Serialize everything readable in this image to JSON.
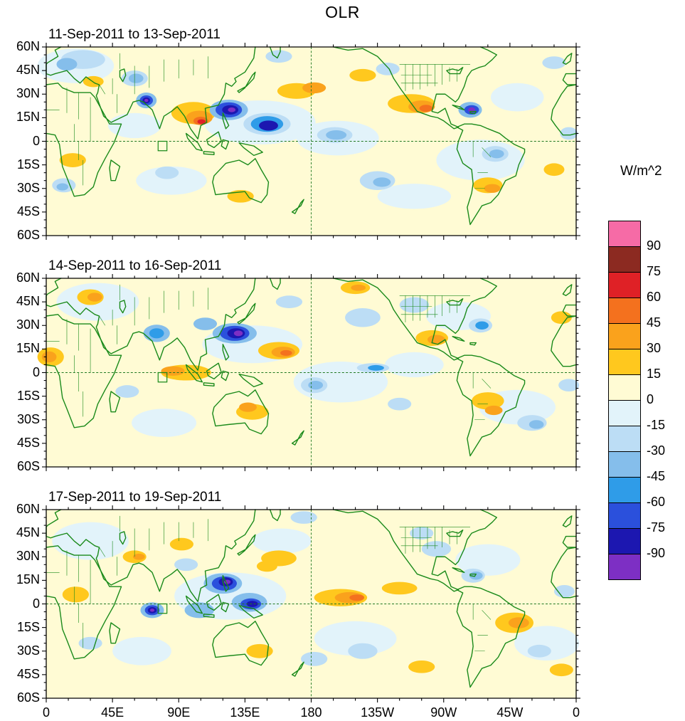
{
  "title": "OLR",
  "units_label": "W/m^2",
  "panels": [
    {
      "title": "11-Sep-2011 to 13-Sep-2011",
      "features": [
        [
          20,
          48,
          26,
          11,
          6
        ],
        [
          145,
          12,
          38,
          14,
          6
        ],
        [
          198,
          2,
          28,
          11,
          6
        ],
        [
          295,
          -12,
          30,
          13,
          6
        ],
        [
          85,
          -25,
          24,
          9,
          6
        ],
        [
          320,
          28,
          18,
          9,
          6
        ],
        [
          250,
          -35,
          25,
          8,
          6
        ],
        [
          60,
          10,
          18,
          8,
          6
        ],
        [
          100,
          18,
          15,
          7,
          8
        ],
        [
          104,
          15,
          9,
          4.5,
          9
        ],
        [
          105,
          13,
          5,
          2.6,
          10
        ],
        [
          105.5,
          12.5,
          2.8,
          1.5,
          11
        ],
        [
          170,
          32,
          13,
          5,
          8
        ],
        [
          182,
          34,
          8,
          3.5,
          9
        ],
        [
          248,
          24,
          16,
          6,
          8
        ],
        [
          255,
          22,
          9,
          4,
          9
        ],
        [
          258,
          21,
          4.5,
          2.2,
          10
        ],
        [
          300,
          -28,
          10,
          5,
          8
        ],
        [
          303,
          -30,
          5.5,
          2.8,
          9
        ],
        [
          18,
          -12,
          9,
          4.5,
          8
        ],
        [
          132,
          -35,
          9,
          4,
          8
        ],
        [
          345,
          -18,
          7,
          4,
          8
        ],
        [
          32,
          38,
          7,
          3.5,
          8
        ],
        [
          215,
          42,
          9,
          4,
          8
        ],
        [
          25,
          52,
          15,
          6,
          5
        ],
        [
          14,
          49,
          7,
          4,
          4
        ],
        [
          60,
          40,
          9,
          5,
          5
        ],
        [
          61,
          40,
          5,
          3,
          4
        ],
        [
          68,
          26,
          7,
          5,
          4
        ],
        [
          68,
          26,
          4.5,
          3.2,
          2
        ],
        [
          68,
          26,
          2.6,
          1.9,
          1
        ],
        [
          68,
          26,
          1.3,
          1,
          0
        ],
        [
          124,
          20,
          13,
          6.5,
          4
        ],
        [
          124,
          20,
          9,
          4.8,
          2
        ],
        [
          125,
          20,
          5.5,
          3,
          1
        ],
        [
          126,
          20,
          2.6,
          1.5,
          0
        ],
        [
          150,
          11,
          16,
          7,
          5
        ],
        [
          150,
          11,
          11,
          5,
          3
        ],
        [
          151,
          10,
          6.5,
          3.2,
          1
        ],
        [
          196,
          4,
          12,
          5,
          5
        ],
        [
          197,
          4,
          7,
          3,
          4
        ],
        [
          225,
          -25,
          12,
          6,
          5
        ],
        [
          228,
          -26,
          6,
          3,
          4
        ],
        [
          288,
          20,
          8,
          5,
          4
        ],
        [
          289,
          20,
          5,
          3,
          2
        ],
        [
          289,
          20,
          2.4,
          1.6,
          0
        ],
        [
          305,
          -8,
          9,
          5,
          5
        ],
        [
          306,
          -8,
          5,
          2.8,
          4
        ],
        [
          12,
          -28,
          8,
          4.5,
          5
        ],
        [
          11,
          -29,
          4,
          2.3,
          4
        ],
        [
          82,
          -20,
          8,
          4,
          5
        ],
        [
          355,
          5,
          6,
          4,
          5
        ],
        [
          158,
          54,
          9,
          4,
          5
        ],
        [
          232,
          46,
          8,
          4,
          5
        ],
        [
          345,
          50,
          8,
          4,
          5
        ]
      ]
    },
    {
      "title": "14-Sep-2011 to 16-Sep-2011",
      "features": [
        [
          35,
          45,
          28,
          12,
          6
        ],
        [
          140,
          18,
          34,
          12,
          6
        ],
        [
          200,
          -6,
          32,
          13,
          6
        ],
        [
          280,
          36,
          22,
          9,
          6
        ],
        [
          320,
          -22,
          26,
          11,
          6
        ],
        [
          80,
          -32,
          22,
          9,
          6
        ],
        [
          250,
          5,
          20,
          8,
          6
        ],
        [
          95,
          0,
          17,
          5,
          8
        ],
        [
          86,
          1,
          8,
          3,
          9
        ],
        [
          158,
          14,
          14,
          5.5,
          8
        ],
        [
          161,
          13,
          8,
          3.5,
          9
        ],
        [
          163,
          12.5,
          4,
          1.8,
          10
        ],
        [
          30,
          48,
          9,
          5,
          8
        ],
        [
          33,
          48,
          5,
          2.8,
          9
        ],
        [
          3,
          10,
          9,
          6,
          8
        ],
        [
          2,
          10,
          5,
          3.5,
          9
        ],
        [
          262,
          22,
          11,
          5,
          8
        ],
        [
          265,
          21,
          6,
          3,
          9
        ],
        [
          300,
          -18,
          11,
          5.5,
          8
        ],
        [
          304,
          -24,
          6,
          3,
          9
        ],
        [
          140,
          -25,
          11,
          5,
          8
        ],
        [
          137,
          -22,
          6,
          3,
          9
        ],
        [
          210,
          54,
          10,
          4,
          8
        ],
        [
          212,
          54,
          5,
          2,
          9
        ],
        [
          350,
          35,
          7,
          4,
          8
        ],
        [
          75,
          25,
          9,
          5.5,
          4
        ],
        [
          75,
          25,
          5,
          3.2,
          3
        ],
        [
          128,
          25,
          15,
          6.5,
          4
        ],
        [
          128,
          25,
          10,
          4.8,
          2
        ],
        [
          129,
          25,
          6,
          3.2,
          1
        ],
        [
          130.5,
          25,
          3,
          1.8,
          0
        ],
        [
          108,
          31,
          8,
          4,
          4
        ],
        [
          182,
          -8,
          9,
          5,
          5
        ],
        [
          183,
          -8,
          5,
          2.8,
          4
        ],
        [
          215,
          35,
          12,
          6,
          5
        ],
        [
          222,
          3,
          11,
          3,
          5
        ],
        [
          224,
          3,
          5.5,
          1.8,
          3
        ],
        [
          250,
          43,
          10,
          5,
          5
        ],
        [
          295,
          30,
          8,
          4.5,
          5
        ],
        [
          296,
          30,
          4.5,
          2.6,
          3
        ],
        [
          330,
          -32,
          10,
          5,
          5
        ],
        [
          333,
          -33,
          5,
          2.8,
          4
        ],
        [
          55,
          -12,
          8,
          4,
          5
        ],
        [
          355,
          -8,
          7,
          4,
          5
        ],
        [
          165,
          45,
          9,
          4,
          5
        ],
        [
          240,
          -20,
          8,
          4,
          5
        ]
      ]
    },
    {
      "title": "17-Sep-2011 to 19-Sep-2011",
      "features": [
        [
          30,
          40,
          26,
          12,
          6
        ],
        [
          125,
          5,
          38,
          15,
          6
        ],
        [
          210,
          -22,
          28,
          11,
          6
        ],
        [
          300,
          28,
          22,
          10,
          6
        ],
        [
          340,
          -25,
          22,
          11,
          6
        ],
        [
          65,
          -30,
          20,
          9,
          6
        ],
        [
          160,
          40,
          20,
          8,
          6
        ],
        [
          200,
          4,
          18,
          5.5,
          8
        ],
        [
          206,
          4,
          10,
          3.5,
          9
        ],
        [
          211,
          4,
          5,
          2,
          10
        ],
        [
          158,
          29,
          12,
          5,
          8
        ],
        [
          150,
          24,
          7,
          3.5,
          8
        ],
        [
          240,
          10,
          12,
          4,
          8
        ],
        [
          318,
          -12,
          13,
          6.5,
          8
        ],
        [
          321,
          -12,
          7,
          3.5,
          9
        ],
        [
          20,
          6,
          9,
          5,
          8
        ],
        [
          60,
          30,
          8,
          4,
          8
        ],
        [
          63,
          30,
          4,
          2,
          9
        ],
        [
          145,
          -30,
          9,
          4.5,
          8
        ],
        [
          255,
          -40,
          9,
          4,
          8
        ],
        [
          92,
          38,
          8,
          4,
          8
        ],
        [
          350,
          -42,
          8,
          4,
          8
        ],
        [
          72,
          -4,
          8,
          5,
          4
        ],
        [
          72,
          -4,
          5,
          3.2,
          2
        ],
        [
          72,
          -4,
          3,
          2,
          1
        ],
        [
          72,
          -4,
          1.5,
          1,
          0
        ],
        [
          120,
          13,
          13,
          6.5,
          4
        ],
        [
          121,
          13,
          8.5,
          4.5,
          2
        ],
        [
          122,
          14,
          4.8,
          2.8,
          1
        ],
        [
          123,
          14,
          2.2,
          1.4,
          0
        ],
        [
          138,
          1,
          12,
          6,
          4
        ],
        [
          139,
          0,
          7,
          3.5,
          2
        ],
        [
          140,
          0,
          3.8,
          2,
          1
        ],
        [
          104,
          -4,
          10,
          5,
          4
        ],
        [
          265,
          35,
          10,
          5,
          5
        ],
        [
          255,
          45,
          8,
          4,
          5
        ],
        [
          290,
          18,
          8,
          4.5,
          5
        ],
        [
          292,
          18,
          4.5,
          2.6,
          4
        ],
        [
          182,
          -35,
          9,
          4.5,
          5
        ],
        [
          215,
          -30,
          10,
          5,
          5
        ],
        [
          335,
          -30,
          8,
          4,
          5
        ],
        [
          95,
          25,
          8,
          4,
          5
        ],
        [
          30,
          -25,
          8,
          4,
          5
        ],
        [
          352,
          8,
          7,
          4,
          5
        ],
        [
          175,
          55,
          9,
          4,
          5
        ]
      ]
    }
  ],
  "axes": {
    "lat_labels": [
      "60N",
      "45N",
      "30N",
      "15N",
      "0",
      "15S",
      "30S",
      "45S",
      "60S"
    ],
    "lat_values": [
      60,
      45,
      30,
      15,
      0,
      -15,
      -30,
      -45,
      -60
    ],
    "lon_labels": [
      "0",
      "45E",
      "90E",
      "135E",
      "180",
      "135W",
      "90W",
      "45W",
      "0"
    ],
    "lon_values": [
      0,
      45,
      90,
      135,
      180,
      225,
      270,
      315,
      360
    ]
  },
  "colorbar": {
    "tick_labels": [
      "90",
      "75",
      "60",
      "45",
      "30",
      "15",
      "0",
      "-15",
      "-30",
      "-45",
      "-60",
      "-75",
      "-90"
    ]
  },
  "colors": {
    "palette_low_to_high": [
      "#7D2FC4",
      "#1C17B0",
      "#2B50DC",
      "#2F9CE8",
      "#85BEEB",
      "#BCDDF5",
      "#E2F3FA",
      "#FFFBD4",
      "#FFC81E",
      "#FAA21C",
      "#F4711E",
      "#DF2126",
      "#8C2A21",
      "#F66BA6"
    ],
    "land_outline": "#1a8a1a",
    "dashed_line": "#207820",
    "frame": "#000000",
    "map_background": "#FFFBD4"
  },
  "marker_box": {
    "lon_min": 76,
    "lon_max": 82,
    "lat_min": -6,
    "lat_max": 0
  },
  "chart_data": {
    "type": "heatmap",
    "subtype": "filled-contour world-map anomaly panels (3 stacked maps sharing one colorbar)",
    "title": "OLR",
    "units": "W/m^2",
    "panels": [
      "11-Sep-2011 to 13-Sep-2011",
      "14-Sep-2011 to 16-Sep-2011",
      "17-Sep-2011 to 19-Sep-2011"
    ],
    "contour_levels": [
      -90,
      -75,
      -60,
      -45,
      -30,
      -15,
      0,
      15,
      30,
      45,
      60,
      75,
      90
    ],
    "palette_low_to_high": [
      "#7D2FC4",
      "#1C17B0",
      "#2B50DC",
      "#2F9CE8",
      "#85BEEB",
      "#BCDDF5",
      "#E2F3FA",
      "#FFFBD4",
      "#FFC81E",
      "#FAA21C",
      "#F4711E",
      "#DF2126",
      "#8C2A21",
      "#F66BA6"
    ],
    "x_axis": {
      "tick_labels": [
        "0",
        "45E",
        "90E",
        "135E",
        "180",
        "135W",
        "90W",
        "45W",
        "0"
      ],
      "range_deg_east": [
        0,
        360
      ],
      "minor_tick_deg": 15
    },
    "y_axis": {
      "tick_labels": [
        "60N",
        "45N",
        "30N",
        "15N",
        "0",
        "15S",
        "30S",
        "45S",
        "60S"
      ],
      "range_deg_north": [
        60,
        -60
      ],
      "minor_tick_deg": 5
    },
    "colorbar_position": "right",
    "grid_lines": {
      "equator_dashed": true,
      "dateline_180_dashed": true
    },
    "approx_anomaly_centers_per_panel": [
      [
        {
          "lon": 68,
          "lat": 26,
          "peak_wm2": -95
        },
        {
          "lon": 105,
          "lat": 13,
          "peak_wm2": 65
        },
        {
          "lon": 125,
          "lat": 20,
          "peak_wm2": -95
        },
        {
          "lon": 150,
          "lat": 11,
          "peak_wm2": -80
        },
        {
          "lon": 170,
          "lat": 33,
          "peak_wm2": 40
        },
        {
          "lon": 255,
          "lat": 22,
          "peak_wm2": 50
        },
        {
          "lon": 289,
          "lat": 20,
          "peak_wm2": -95
        },
        {
          "lon": 302,
          "lat": -29,
          "peak_wm2": 40
        }
      ],
      [
        {
          "lon": 129,
          "lat": 25,
          "peak_wm2": -95
        },
        {
          "lon": 75,
          "lat": 25,
          "peak_wm2": -50
        },
        {
          "lon": 162,
          "lat": 13,
          "peak_wm2": 50
        },
        {
          "lon": 90,
          "lat": 1,
          "peak_wm2": 35
        },
        {
          "lon": 264,
          "lat": 21,
          "peak_wm2": 35
        },
        {
          "lon": 3,
          "lat": 10,
          "peak_wm2": 35
        },
        {
          "lon": 296,
          "lat": 30,
          "peak_wm2": -50
        }
      ],
      [
        {
          "lon": 72,
          "lat": -4,
          "peak_wm2": -95
        },
        {
          "lon": 122,
          "lat": 14,
          "peak_wm2": -95
        },
        {
          "lon": 140,
          "lat": 0,
          "peak_wm2": -80
        },
        {
          "lon": 208,
          "lat": 4,
          "peak_wm2": 50
        },
        {
          "lon": 320,
          "lat": -12,
          "peak_wm2": 40
        },
        {
          "lon": 62,
          "lat": 30,
          "peak_wm2": 35
        }
      ]
    ]
  }
}
